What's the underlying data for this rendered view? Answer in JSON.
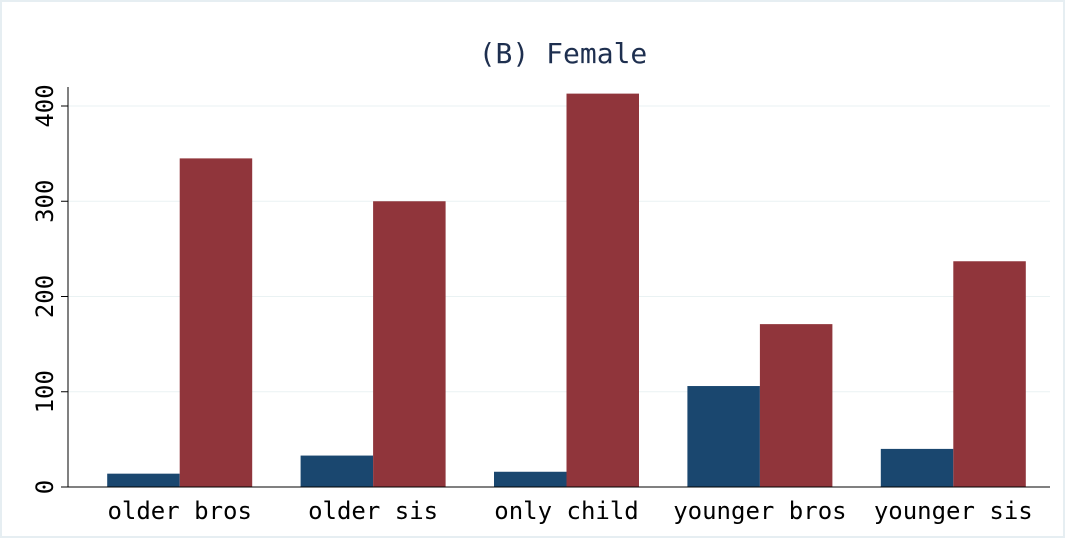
{
  "chart_data": {
    "type": "bar",
    "title": "(B) Female",
    "categories": [
      "older bros",
      "older sis",
      "only child",
      "younger bros",
      "younger sis"
    ],
    "series": [
      {
        "color": "#1a476f",
        "values": [
          14,
          33,
          16,
          106,
          40
        ]
      },
      {
        "color": "#90353b",
        "values": [
          345,
          300,
          413,
          171,
          237
        ]
      }
    ],
    "ylim": [
      0,
      420
    ],
    "yticks": [
      0,
      100,
      200,
      300,
      400
    ],
    "grid": true
  }
}
